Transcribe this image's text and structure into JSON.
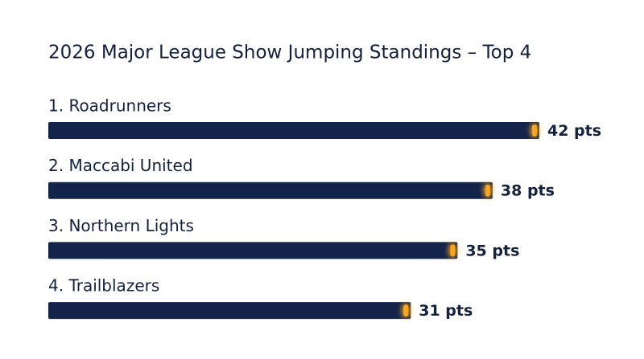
{
  "chart_data": {
    "type": "bar",
    "orientation": "horizontal",
    "title": "2026 Major League Show Jumping Standings – Top 4",
    "categories": [
      "1. Roadrunners",
      "2. Maccabi United",
      "3. Northern Lights",
      "4. Trailblazers"
    ],
    "values": [
      42,
      38,
      35,
      31
    ],
    "value_labels": [
      "42 pts",
      "38 pts",
      "35 pts",
      "31 pts"
    ],
    "color": "#13234a",
    "accent_color": "#f5a623"
  }
}
